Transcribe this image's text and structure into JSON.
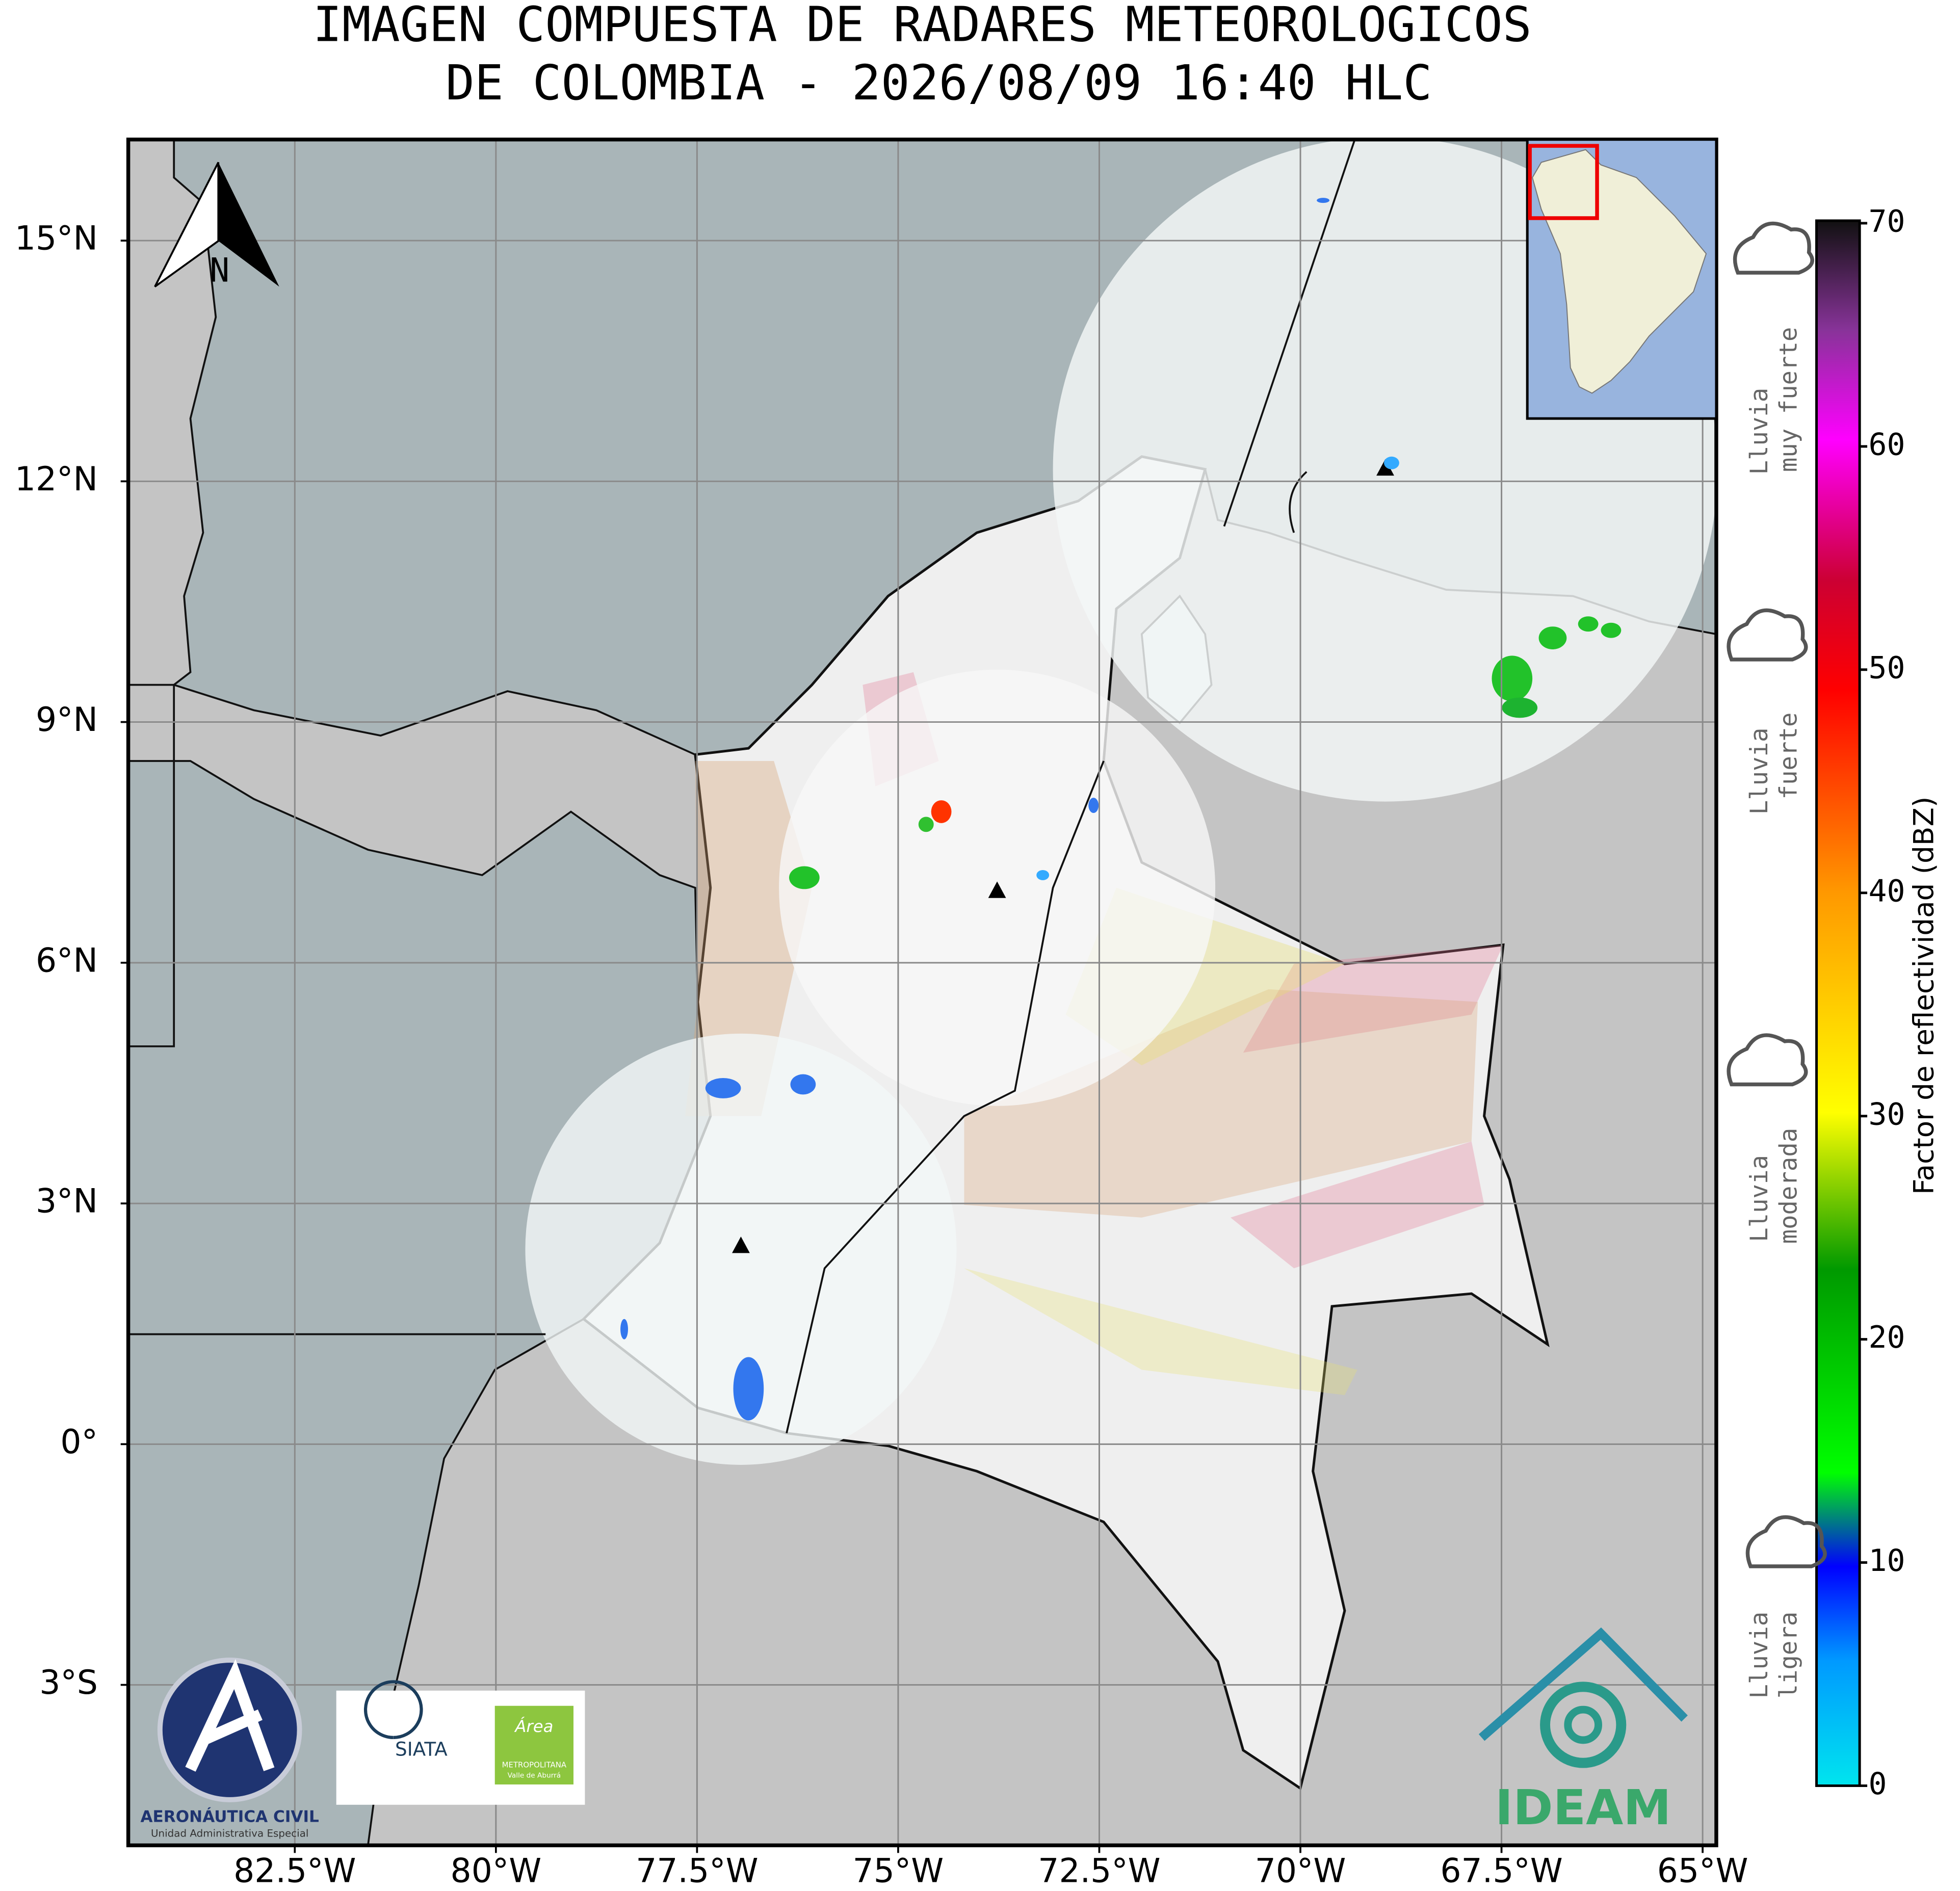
{
  "title": [
    "IMAGEN COMPUESTA DE RADARES METEOROLOGICOS",
    "DE COLOMBIA - 2026/08/09 16:40 HLC"
  ],
  "map": {
    "xlim": [
      -84.57,
      -64.83
    ],
    "ylim": [
      -5.0,
      16.26
    ],
    "xticks": [
      {
        "value": -82.5,
        "label": "82.5°W"
      },
      {
        "value": -80,
        "label": "80°W"
      },
      {
        "value": -77.5,
        "label": "77.5°W"
      },
      {
        "value": -75,
        "label": "75°W"
      },
      {
        "value": -72.5,
        "label": "72.5°W"
      },
      {
        "value": -70,
        "label": "70°W"
      },
      {
        "value": -67.5,
        "label": "67.5°W"
      },
      {
        "value": -65,
        "label": "65°W"
      }
    ],
    "yticks": [
      {
        "value": 15,
        "label": "15°N"
      },
      {
        "value": 12,
        "label": "12°N"
      },
      {
        "value": 9,
        "label": "9°N"
      },
      {
        "value": 6,
        "label": "6°N"
      },
      {
        "value": 3,
        "label": "3°N"
      },
      {
        "value": 0,
        "label": "0°"
      },
      {
        "value": -3,
        "label": "3°S"
      }
    ],
    "grid": true
  },
  "north": "N",
  "colorbar": {
    "label": "Factor de reflectividad (dBZ)",
    "lim": [
      0,
      70
    ],
    "ticks": [
      0,
      10,
      20,
      30,
      40,
      50,
      60,
      70
    ]
  },
  "legend": [
    [
      "Lluvia",
      "muy fuerte"
    ],
    [
      "Lluvia",
      "fuerte"
    ],
    [
      "Lluvia",
      "moderada"
    ],
    [
      "Lluvia",
      "ligera"
    ]
  ],
  "logos": {
    "aerocivil": [
      "AERONÁUTICA CIVIL",
      "Unidad Administrativa Especial"
    ],
    "siata": "SIATA",
    "area": [
      "Área",
      "METROPOLITANA",
      "Valle de Aburrá"
    ],
    "ideam": "IDEAM"
  }
}
